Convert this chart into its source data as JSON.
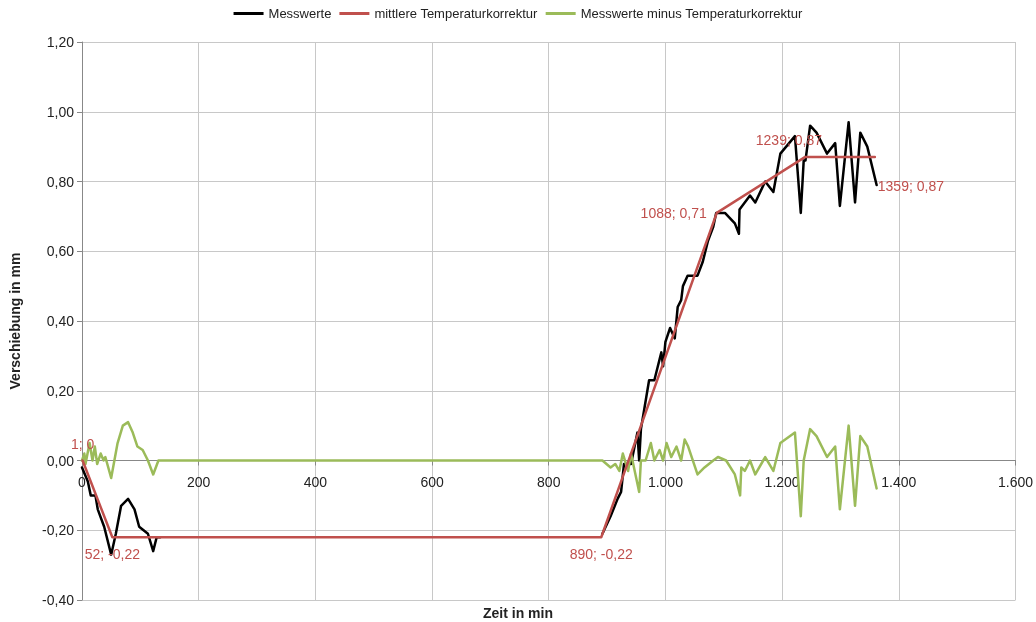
{
  "chart_data": {
    "type": "line",
    "xlabel": "Zeit in min",
    "ylabel": "Verschiebung in mm",
    "xlim": [
      0,
      1600
    ],
    "xticks": [
      0,
      200,
      400,
      600,
      800,
      {
        "value": 1000,
        "label": "1.000"
      },
      {
        "value": 1200,
        "label": "1.200"
      },
      {
        "value": 1400,
        "label": "1.400"
      },
      {
        "value": 1600,
        "label": "1.600"
      }
    ],
    "ylim": [
      -0.4,
      1.2
    ],
    "yticks": [
      {
        "value": -0.4,
        "label": "-0,40"
      },
      {
        "value": -0.2,
        "label": "-0,20"
      },
      {
        "value": 0,
        "label": "0,00"
      },
      {
        "value": 0.2,
        "label": "0,20"
      },
      {
        "value": 0.4,
        "label": "0,40"
      },
      {
        "value": 0.6,
        "label": "0,60"
      },
      {
        "value": 0.8,
        "label": "0,80"
      },
      {
        "value": 1,
        "label": "1,00"
      },
      {
        "value": 1.2,
        "label": "1,20"
      }
    ],
    "grid": true,
    "legend": "top",
    "marker": "none",
    "line_style": "solid",
    "series": [
      {
        "name": "Messwerte",
        "color": "#000000",
        "x": [
          0,
          10,
          15,
          23,
          27,
          38,
          50,
          58,
          67,
          79,
          90,
          98,
          113,
          122,
          128,
          134,
          500,
          892,
          906,
          918,
          924,
          929,
          941,
          952,
          955,
          958,
          964,
          972,
          981,
          993,
          996,
          1000,
          1008,
          1016,
          1021,
          1027,
          1030,
          1038,
          1055,
          1064,
          1073,
          1082,
          1087,
          1102,
          1119,
          1126,
          1127,
          1136,
          1145,
          1154,
          1171,
          1185,
          1197,
          1222,
          1232,
          1237,
          1240,
          1248,
          1259,
          1277,
          1291,
          1299,
          1314,
          1325,
          1334,
          1346,
          1362
        ],
        "values": [
          -0.02,
          -0.06,
          -0.1,
          -0.1,
          -0.14,
          -0.19,
          -0.27,
          -0.21,
          -0.13,
          -0.11,
          -0.14,
          -0.19,
          -0.21,
          -0.26,
          -0.22,
          -0.22,
          null,
          -0.21,
          -0.16,
          -0.11,
          -0.09,
          -0.01,
          -0.01,
          0.08,
          0.0,
          0.09,
          0.15,
          0.23,
          0.23,
          0.31,
          0.27,
          0.34,
          0.38,
          0.35,
          0.44,
          0.46,
          0.5,
          0.53,
          0.53,
          0.57,
          0.63,
          0.67,
          0.71,
          0.71,
          0.68,
          0.65,
          0.72,
          0.74,
          0.76,
          0.74,
          0.8,
          0.77,
          0.88,
          0.93,
          0.71,
          0.86,
          0.86,
          0.96,
          0.94,
          0.88,
          0.91,
          0.73,
          0.97,
          0.74,
          0.94,
          0.9,
          0.79
        ]
      },
      {
        "name": "mittlere Temperaturkorrektur",
        "color": "#c0504d",
        "x": [
          1,
          52,
          890,
          1088,
          1239,
          1359
        ],
        "values": [
          0,
          -0.22,
          -0.22,
          0.71,
          0.87,
          0.87
        ],
        "value_labels": [
          "1; 0",
          "52; -0,22",
          "890; -0,22",
          "1088; 0,71",
          "1239; 0,87",
          "1359; 0,87"
        ]
      },
      {
        "name": "Messwerte minus Temperaturkorrektur",
        "color": "#9bbb59",
        "x": [
          0,
          4,
          6,
          13,
          18,
          22,
          26,
          32,
          37,
          40,
          50,
          61,
          70,
          79,
          87,
          95,
          104,
          113,
          122,
          131,
          500,
          892,
          906,
          914,
          921,
          927,
          936,
          941,
          955,
          958,
          966,
          975,
          981,
          990,
          996,
          1002,
          1010,
          1019,
          1027,
          1033,
          1039,
          1055,
          1067,
          1082,
          1090,
          1104,
          1119,
          1128,
          1130,
          1136,
          1145,
          1154,
          1171,
          1185,
          1197,
          1222,
          1232,
          1237,
          1248,
          1259,
          1277,
          1291,
          1299,
          1314,
          1325,
          1334,
          1346,
          1362
        ],
        "values": [
          0,
          0.02,
          -0.01,
          0.05,
          0,
          0.04,
          -0.01,
          0.02,
          0,
          0.01,
          -0.05,
          0.05,
          0.1,
          0.11,
          0.08,
          0.04,
          0.03,
          0,
          -0.04,
          0,
          0,
          0,
          -0.02,
          -0.01,
          -0.03,
          0.02,
          -0.03,
          0.02,
          -0.09,
          0,
          0,
          0.05,
          0,
          0.03,
          0,
          0.05,
          0.01,
          0.04,
          0,
          0.06,
          0.04,
          -0.04,
          -0.02,
          0,
          0.01,
          0,
          -0.04,
          -0.1,
          -0.02,
          -0.03,
          0,
          -0.04,
          0.01,
          -0.03,
          0.05,
          0.08,
          -0.16,
          0,
          0.09,
          0.07,
          0.01,
          0.04,
          -0.14,
          0.1,
          -0.13,
          0.07,
          0.04,
          -0.08
        ]
      }
    ]
  }
}
